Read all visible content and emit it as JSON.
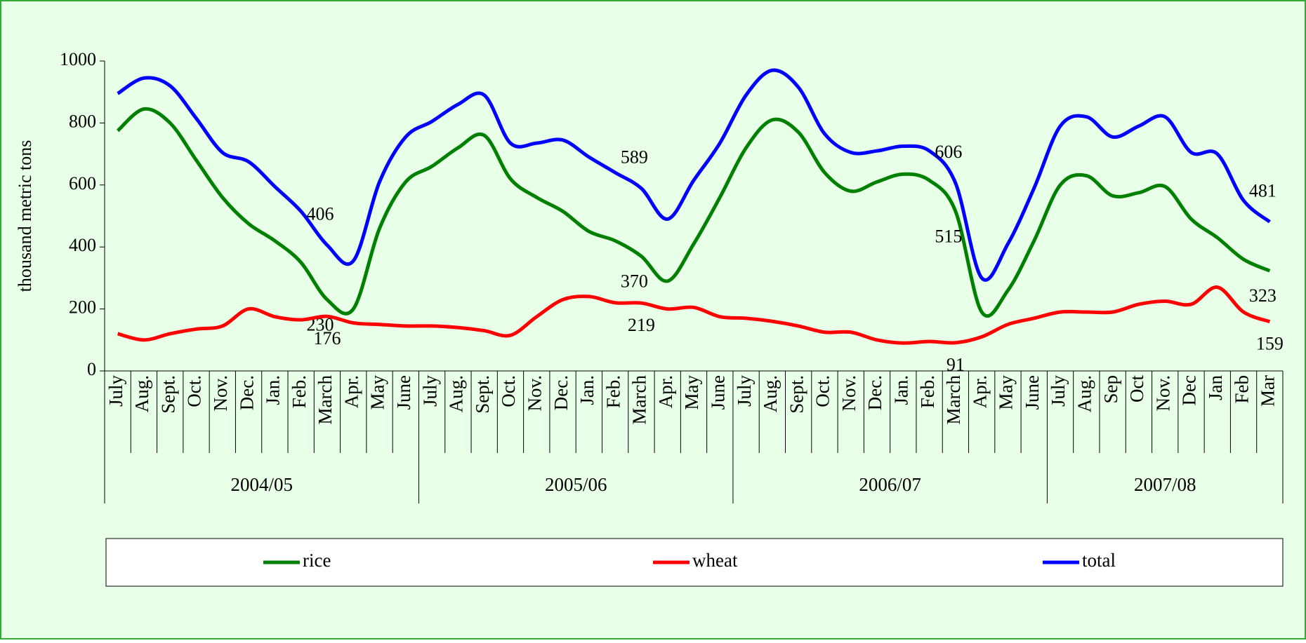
{
  "chart_data": {
    "type": "line",
    "y_label": "thousand metric tons",
    "categories": [
      "July",
      "Aug.",
      "Sept.",
      "Oct.",
      "Nov.",
      "Dec.",
      "Jan.",
      "Feb.",
      "March",
      "Apr.",
      "May",
      "June",
      "July",
      "Aug.",
      "Sept.",
      "Oct.",
      "Nov.",
      "Dec.",
      "Jan.",
      "Feb.",
      "March",
      "Apr.",
      "May",
      "June",
      "July",
      "Aug.",
      "Sept.",
      "Oct.",
      "Nov.",
      "Dec.",
      "Jan.",
      "Feb.",
      "March",
      "Apr.",
      "May",
      "June",
      "July",
      "Aug.",
      "Sep",
      "Oct",
      "Nov.",
      "Dec",
      "Jan",
      "Feb",
      "Mar"
    ],
    "groups": [
      {
        "label": "2004/05",
        "span": 12
      },
      {
        "label": "2005/06",
        "span": 12
      },
      {
        "label": "2006/07",
        "span": 12
      },
      {
        "label": "2007/08",
        "span": 9
      }
    ],
    "series": [
      {
        "name": "rice",
        "color": "#008000",
        "label_side": "below",
        "labeled": [
          8,
          20,
          32,
          44
        ],
        "values": [
          775,
          845,
          800,
          680,
          560,
          475,
          420,
          350,
          230,
          200,
          460,
          610,
          660,
          720,
          760,
          620,
          560,
          515,
          450,
          420,
          370,
          290,
          410,
          560,
          720,
          810,
          770,
          640,
          580,
          610,
          635,
          615,
          515,
          190,
          260,
          420,
          600,
          630,
          565,
          575,
          595,
          490,
          430,
          360,
          323
        ]
      },
      {
        "name": "wheat",
        "color": "#ff0000",
        "label_side": "under",
        "labeled": [
          8,
          20,
          32,
          44
        ],
        "values": [
          120,
          100,
          120,
          135,
          145,
          200,
          175,
          165,
          176,
          155,
          150,
          145,
          145,
          140,
          130,
          115,
          175,
          230,
          240,
          220,
          219,
          200,
          205,
          175,
          170,
          160,
          145,
          125,
          125,
          100,
          90,
          95,
          91,
          110,
          150,
          170,
          190,
          190,
          190,
          215,
          225,
          215,
          270,
          190,
          159
        ]
      },
      {
        "name": "total",
        "color": "#0000ff",
        "label_side": "above",
        "labeled": [
          8,
          20,
          32,
          44
        ],
        "values": [
          895,
          945,
          920,
          815,
          705,
          675,
          595,
          515,
          406,
          355,
          610,
          755,
          805,
          860,
          890,
          735,
          735,
          745,
          690,
          640,
          589,
          490,
          615,
          735,
          890,
          970,
          915,
          765,
          705,
          710,
          725,
          710,
          606,
          300,
          410,
          590,
          790,
          820,
          755,
          790,
          820,
          705,
          700,
          550,
          481
        ]
      }
    ],
    "ylim": [
      0,
      1000
    ],
    "yticks": [
      0,
      200,
      400,
      600,
      800,
      1000
    ],
    "legend": "bottom"
  }
}
